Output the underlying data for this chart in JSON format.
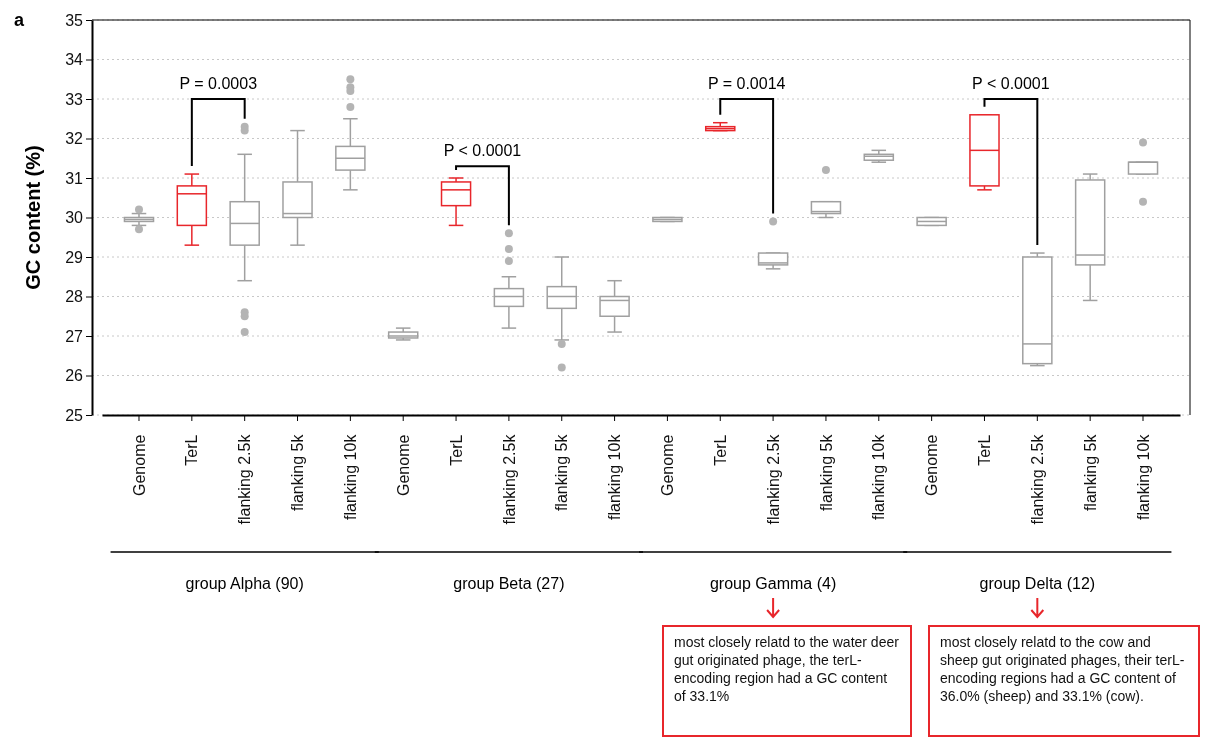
{
  "chart_data": {
    "type": "box",
    "title": "a",
    "ylabel": "GC content (%)",
    "categories": [
      "Genome",
      "TerL",
      "flanking 2.5k",
      "flanking 5k",
      "flanking 10k",
      "Genome",
      "TerL",
      "flanking 2.5k",
      "flanking 5k",
      "flanking 10k",
      "Genome",
      "TerL",
      "flanking 2.5k",
      "flanking 5k",
      "flanking 10k",
      "Genome",
      "TerL",
      "flanking 2.5k",
      "flanking 5k",
      "flanking 10k"
    ],
    "colors": [
      "#a0a0a0",
      "#e8262b",
      "#a0a0a0",
      "#a0a0a0",
      "#a0a0a0",
      "#a0a0a0",
      "#e8262b",
      "#a0a0a0",
      "#a0a0a0",
      "#a0a0a0",
      "#a0a0a0",
      "#e8262b",
      "#a0a0a0",
      "#a0a0a0",
      "#a0a0a0",
      "#a0a0a0",
      "#e8262b",
      "#a0a0a0",
      "#a0a0a0",
      "#a0a0a0"
    ],
    "boxes": [
      {
        "low": 29.8,
        "q1": 29.9,
        "median": 29.95,
        "q3": 30.0,
        "high": 30.1,
        "outliers": [
          30.2,
          29.7
        ]
      },
      {
        "low": 29.3,
        "q1": 29.8,
        "median": 30.6,
        "q3": 30.8,
        "high": 31.1
      },
      {
        "low": 28.4,
        "q1": 29.3,
        "median": 29.85,
        "q3": 30.4,
        "high": 31.6,
        "outliers": [
          32.3,
          32.2,
          27.6,
          27.5,
          27.1
        ]
      },
      {
        "low": 29.3,
        "q1": 30.0,
        "median": 30.1,
        "q3": 30.9,
        "high": 32.2
      },
      {
        "low": 30.7,
        "q1": 31.2,
        "median": 31.5,
        "q3": 31.8,
        "high": 32.5,
        "outliers": [
          33.5,
          33.3,
          33.2,
          32.8
        ]
      },
      {
        "low": 26.9,
        "q1": 26.95,
        "median": 27.0,
        "q3": 27.1,
        "high": 27.2
      },
      {
        "low": 29.8,
        "q1": 30.3,
        "median": 30.7,
        "q3": 30.9,
        "high": 31.0
      },
      {
        "low": 27.2,
        "q1": 27.75,
        "median": 28.0,
        "q3": 28.2,
        "high": 28.5,
        "outliers": [
          29.6,
          29.2,
          28.9
        ]
      },
      {
        "low": 26.9,
        "q1": 27.7,
        "median": 28.0,
        "q3": 28.25,
        "high": 29.0,
        "outliers": [
          26.8,
          26.2
        ]
      },
      {
        "low": 27.1,
        "q1": 27.5,
        "median": 27.9,
        "q3": 28.0,
        "high": 28.4
      },
      {
        "low": 29.9,
        "q1": 29.9,
        "median": 29.95,
        "q3": 30.0,
        "high": 30.0
      },
      {
        "low": 32.2,
        "q1": 32.2,
        "median": 32.25,
        "q3": 32.3,
        "high": 32.4
      },
      {
        "low": 28.7,
        "q1": 28.8,
        "median": 28.85,
        "q3": 29.1,
        "high": 29.1,
        "outliers": [
          29.9
        ]
      },
      {
        "low": 30.0,
        "q1": 30.1,
        "median": 30.15,
        "q3": 30.4,
        "high": 30.4,
        "outliers": [
          31.2
        ]
      },
      {
        "low": 31.4,
        "q1": 31.45,
        "median": 31.55,
        "q3": 31.6,
        "high": 31.7
      },
      {
        "low": 29.8,
        "q1": 29.8,
        "median": 29.9,
        "q3": 30.0,
        "high": 30.0
      },
      {
        "low": 30.7,
        "q1": 30.8,
        "median": 31.7,
        "q3": 32.6,
        "high": 32.6
      },
      {
        "low": 26.25,
        "q1": 26.3,
        "median": 26.8,
        "q3": 29.0,
        "high": 29.1
      },
      {
        "low": 27.9,
        "q1": 28.8,
        "median": 29.05,
        "q3": 30.95,
        "high": 31.1
      },
      {
        "low": 31.1,
        "q1": 31.1,
        "median": 31.4,
        "q3": 31.4,
        "high": 31.4,
        "outliers": [
          31.9,
          30.4
        ]
      }
    ],
    "ylim": [
      25,
      35
    ],
    "yticks": [
      25,
      26,
      27,
      28,
      29,
      30,
      31,
      32,
      33,
      34,
      35
    ],
    "grid": "y",
    "annotations": [
      "P = 0.0003",
      "P < 0.0001",
      "P = 0.0014",
      "P < 0.0001",
      "group Alpha (90)",
      "group Beta (27)",
      "group Gamma (4)",
      "group Delta (12)",
      "most closely relatd to the water deer gut originated phage, the terL-encoding region had a GC content of 33.1%",
      "most closely relatd to the cow and sheep gut originated phages, their terL-encoding regions had a GC content of 36.0% (sheep) and 33.1% (cow)."
    ]
  }
}
